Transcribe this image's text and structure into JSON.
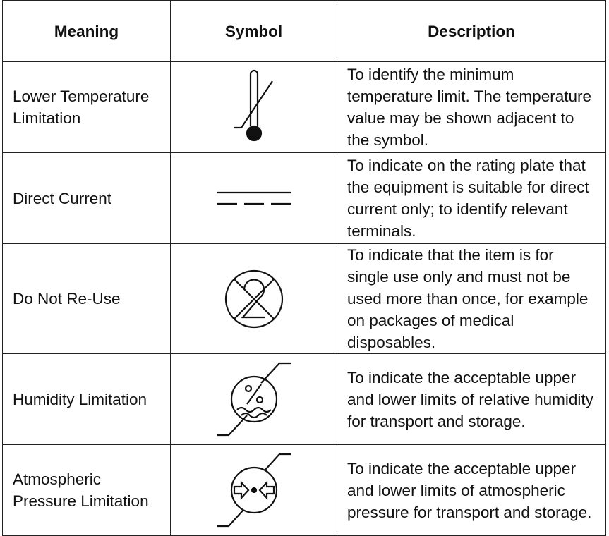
{
  "table": {
    "columns": [
      "Meaning",
      "Symbol",
      "Description"
    ],
    "rows": [
      {
        "meaning": "Lower Temperature Limitation",
        "description": "To identify the minimum temperature limit. The temperature value may be shown adjacent to the symbol."
      },
      {
        "meaning": "Direct Current",
        "description": "To indicate on the rating plate that the equipment is suitable for direct current only; to identify relevant terminals."
      },
      {
        "meaning": "Do Not Re-Use",
        "description": "To indicate that the item is for single use only and must not be used more than once, for example on packages of medical disposables."
      },
      {
        "meaning": "Humidity Limitation",
        "description": "To indicate the acceptable upper and lower limits of relative humidity for transport and storage."
      },
      {
        "meaning": "Atmospheric Pressure Limitation",
        "description": "To indicate the acceptable upper and lower limits of atmospheric pressure for transport and storage."
      }
    ]
  }
}
